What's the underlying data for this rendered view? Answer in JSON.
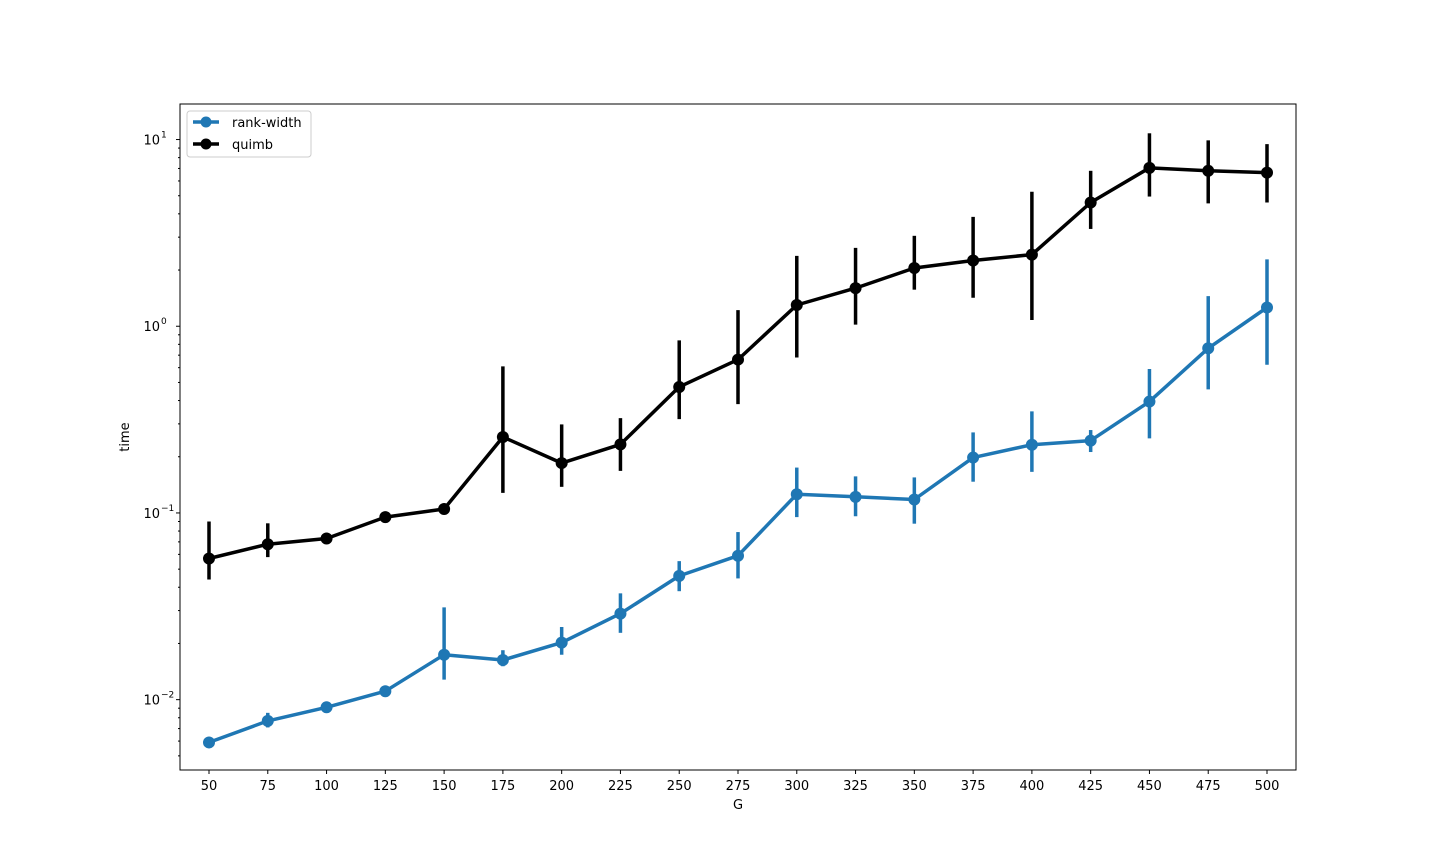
{
  "chart_data": {
    "type": "line",
    "title": "",
    "xlabel": "G",
    "ylabel": "time",
    "yscale": "log",
    "ylim": [
      0.0042,
      15.5
    ],
    "y_ticks": [
      {
        "value": 0.01,
        "base": "10",
        "exp": "−2"
      },
      {
        "value": 0.1,
        "base": "10",
        "exp": "−1"
      },
      {
        "value": 1,
        "base": "10",
        "exp": "0"
      },
      {
        "value": 10,
        "base": "10",
        "exp": "1"
      }
    ],
    "categories": [
      "50",
      "75",
      "100",
      "125",
      "150",
      "175",
      "200",
      "225",
      "250",
      "275",
      "300",
      "325",
      "350",
      "375",
      "400",
      "425",
      "450",
      "475",
      "500"
    ],
    "legend_position": "upper-left",
    "grid": false,
    "series": [
      {
        "name": "rank-width",
        "color": "#1f77b4",
        "values": [
          0.0059,
          0.0077,
          0.0091,
          0.0111,
          0.0174,
          0.0163,
          0.0202,
          0.0289,
          0.046,
          0.059,
          0.126,
          0.122,
          0.118,
          0.198,
          0.232,
          0.244,
          0.395,
          0.762,
          1.26
        ],
        "err_low": [
          0.0058,
          0.0071,
          0.009,
          0.011,
          0.0128,
          0.0151,
          0.0174,
          0.0228,
          0.0381,
          0.0446,
          0.095,
          0.096,
          0.0876,
          0.147,
          0.166,
          0.212,
          0.251,
          0.459,
          0.622
        ],
        "err_high": [
          0.006,
          0.0085,
          0.0093,
          0.0113,
          0.0312,
          0.0184,
          0.0245,
          0.0371,
          0.0552,
          0.079,
          0.175,
          0.157,
          0.155,
          0.27,
          0.35,
          0.278,
          0.59,
          1.45,
          2.28
        ]
      },
      {
        "name": "quimb",
        "color": "#000000",
        "values": [
          0.057,
          0.068,
          0.073,
          0.095,
          0.105,
          0.255,
          0.185,
          0.233,
          0.473,
          0.663,
          1.3,
          1.6,
          2.05,
          2.25,
          2.42,
          4.6,
          7.05,
          6.8,
          6.65
        ],
        "err_low": [
          0.044,
          0.058,
          0.072,
          0.093,
          0.104,
          0.128,
          0.138,
          0.168,
          0.318,
          0.383,
          0.68,
          1.02,
          1.57,
          1.42,
          1.08,
          3.32,
          4.95,
          4.55,
          4.6
        ],
        "err_high": [
          0.09,
          0.088,
          0.075,
          0.097,
          0.107,
          0.61,
          0.298,
          0.322,
          0.84,
          1.22,
          2.38,
          2.63,
          3.05,
          3.85,
          5.25,
          6.8,
          10.8,
          9.9,
          9.45
        ]
      }
    ]
  }
}
